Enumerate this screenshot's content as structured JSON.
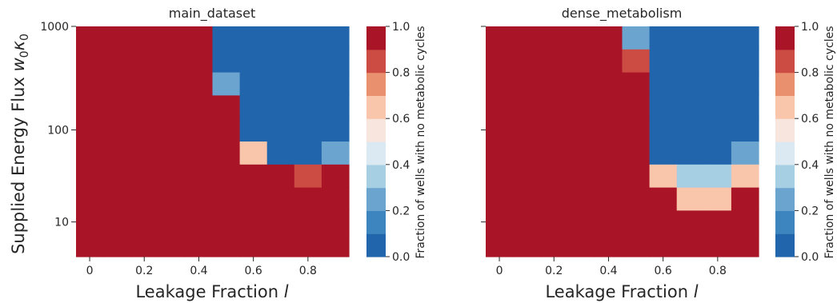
{
  "chart_data": [
    {
      "type": "heatmap",
      "title": "main_dataset",
      "xlabel": "Leakage Fraction ",
      "xlabel_var": "l",
      "ylabel": "Supplied Energy Flux ",
      "ylabel_var": "w",
      "ylabel_sub1": "0",
      "ylabel_var2": "κ",
      "ylabel_sub2": "0",
      "x": [
        0,
        0.1,
        0.2,
        0.3,
        0.4,
        0.5,
        0.6,
        0.7,
        0.8,
        0.9
      ],
      "y": [
        1000,
        562,
        316,
        178,
        100,
        56,
        32,
        18,
        10,
        5.6
      ],
      "x_tick_labels": [
        "0",
        "0.2",
        "0.4",
        "0.6",
        "0.8"
      ],
      "x_tick_values": [
        0,
        0.2,
        0.4,
        0.6,
        0.8
      ],
      "y_tick_labels": [
        "1000",
        "100",
        "10"
      ],
      "y_tick_values": [
        1000,
        100,
        10
      ],
      "y_scale": "log",
      "z": [
        [
          1,
          1,
          1,
          1,
          1,
          0,
          0,
          0,
          0,
          0
        ],
        [
          1,
          1,
          1,
          1,
          1,
          0,
          0,
          0,
          0,
          0
        ],
        [
          1,
          1,
          1,
          1,
          1,
          0.2,
          0,
          0,
          0,
          0
        ],
        [
          1,
          1,
          1,
          1,
          1,
          1,
          0,
          0,
          0,
          0
        ],
        [
          1,
          1,
          1,
          1,
          1,
          1,
          0,
          0,
          0,
          0
        ],
        [
          1,
          1,
          1,
          1,
          1,
          1,
          0.6,
          0,
          0,
          0.2
        ],
        [
          1,
          1,
          1,
          1,
          1,
          1,
          1,
          1,
          0.8,
          1
        ],
        [
          1,
          1,
          1,
          1,
          1,
          1,
          1,
          1,
          1,
          1
        ],
        [
          1,
          1,
          1,
          1,
          1,
          1,
          1,
          1,
          1,
          1
        ],
        [
          1,
          1,
          1,
          1,
          1,
          1,
          1,
          1,
          1,
          1
        ]
      ],
      "colorbar": {
        "label": "Fraction of wells with no metabolic cycles",
        "range": [
          0,
          1
        ],
        "tick_labels": [
          "0.0",
          "0.2",
          "0.4",
          "0.6",
          "0.8",
          "1.0"
        ],
        "tick_values": [
          0,
          0.2,
          0.4,
          0.6,
          0.8,
          1.0
        ],
        "levels": 10
      }
    },
    {
      "type": "heatmap",
      "title": "dense_metabolism",
      "xlabel": "Leakage Fraction ",
      "xlabel_var": "l",
      "ylabel": "",
      "x": [
        0,
        0.1,
        0.2,
        0.3,
        0.4,
        0.5,
        0.6,
        0.7,
        0.8,
        0.9
      ],
      "y": [
        1000,
        562,
        316,
        178,
        100,
        56,
        32,
        18,
        10,
        5.6
      ],
      "x_tick_labels": [
        "0",
        "0.2",
        "0.4",
        "0.6",
        "0.8"
      ],
      "x_tick_values": [
        0,
        0.2,
        0.4,
        0.6,
        0.8
      ],
      "y_scale": "log",
      "z": [
        [
          1,
          1,
          1,
          1,
          1,
          0.2,
          0,
          0,
          0,
          0
        ],
        [
          1,
          1,
          1,
          1,
          1,
          0.8,
          0,
          0,
          0,
          0
        ],
        [
          1,
          1,
          1,
          1,
          1,
          1,
          0,
          0,
          0,
          0
        ],
        [
          1,
          1,
          1,
          1,
          1,
          1,
          0,
          0,
          0,
          0
        ],
        [
          1,
          1,
          1,
          1,
          1,
          1,
          0,
          0,
          0,
          0
        ],
        [
          1,
          1,
          1,
          1,
          1,
          1,
          0,
          0,
          0,
          0.2
        ],
        [
          1,
          1,
          1,
          1,
          1,
          1,
          0.6,
          0.3,
          0.3,
          0.6
        ],
        [
          1,
          1,
          1,
          1,
          1,
          1,
          1,
          0.6,
          0.6,
          0.9
        ],
        [
          1,
          1,
          1,
          1,
          1,
          1,
          1,
          1,
          1,
          1
        ],
        [
          1,
          1,
          1,
          1,
          1,
          1,
          1,
          1,
          1,
          1
        ]
      ],
      "colorbar": {
        "label": "Fraction of wells with no metabolic cycles",
        "range": [
          0,
          1
        ],
        "tick_labels": [
          "0.0",
          "0.2",
          "0.4",
          "0.6",
          "0.8",
          "1.0"
        ],
        "tick_values": [
          0,
          0.2,
          0.4,
          0.6,
          0.8,
          1.0
        ],
        "levels": 10
      }
    }
  ],
  "colors": {
    "palette_low_to_high": [
      "#2166ac",
      "#3d85be",
      "#6ba5cf",
      "#a7cfe4",
      "#dbeaf2",
      "#f8e5dd",
      "#f9c5ab",
      "#e9906f",
      "#cc4c44",
      "#a91427"
    ],
    "text": "#262626"
  }
}
